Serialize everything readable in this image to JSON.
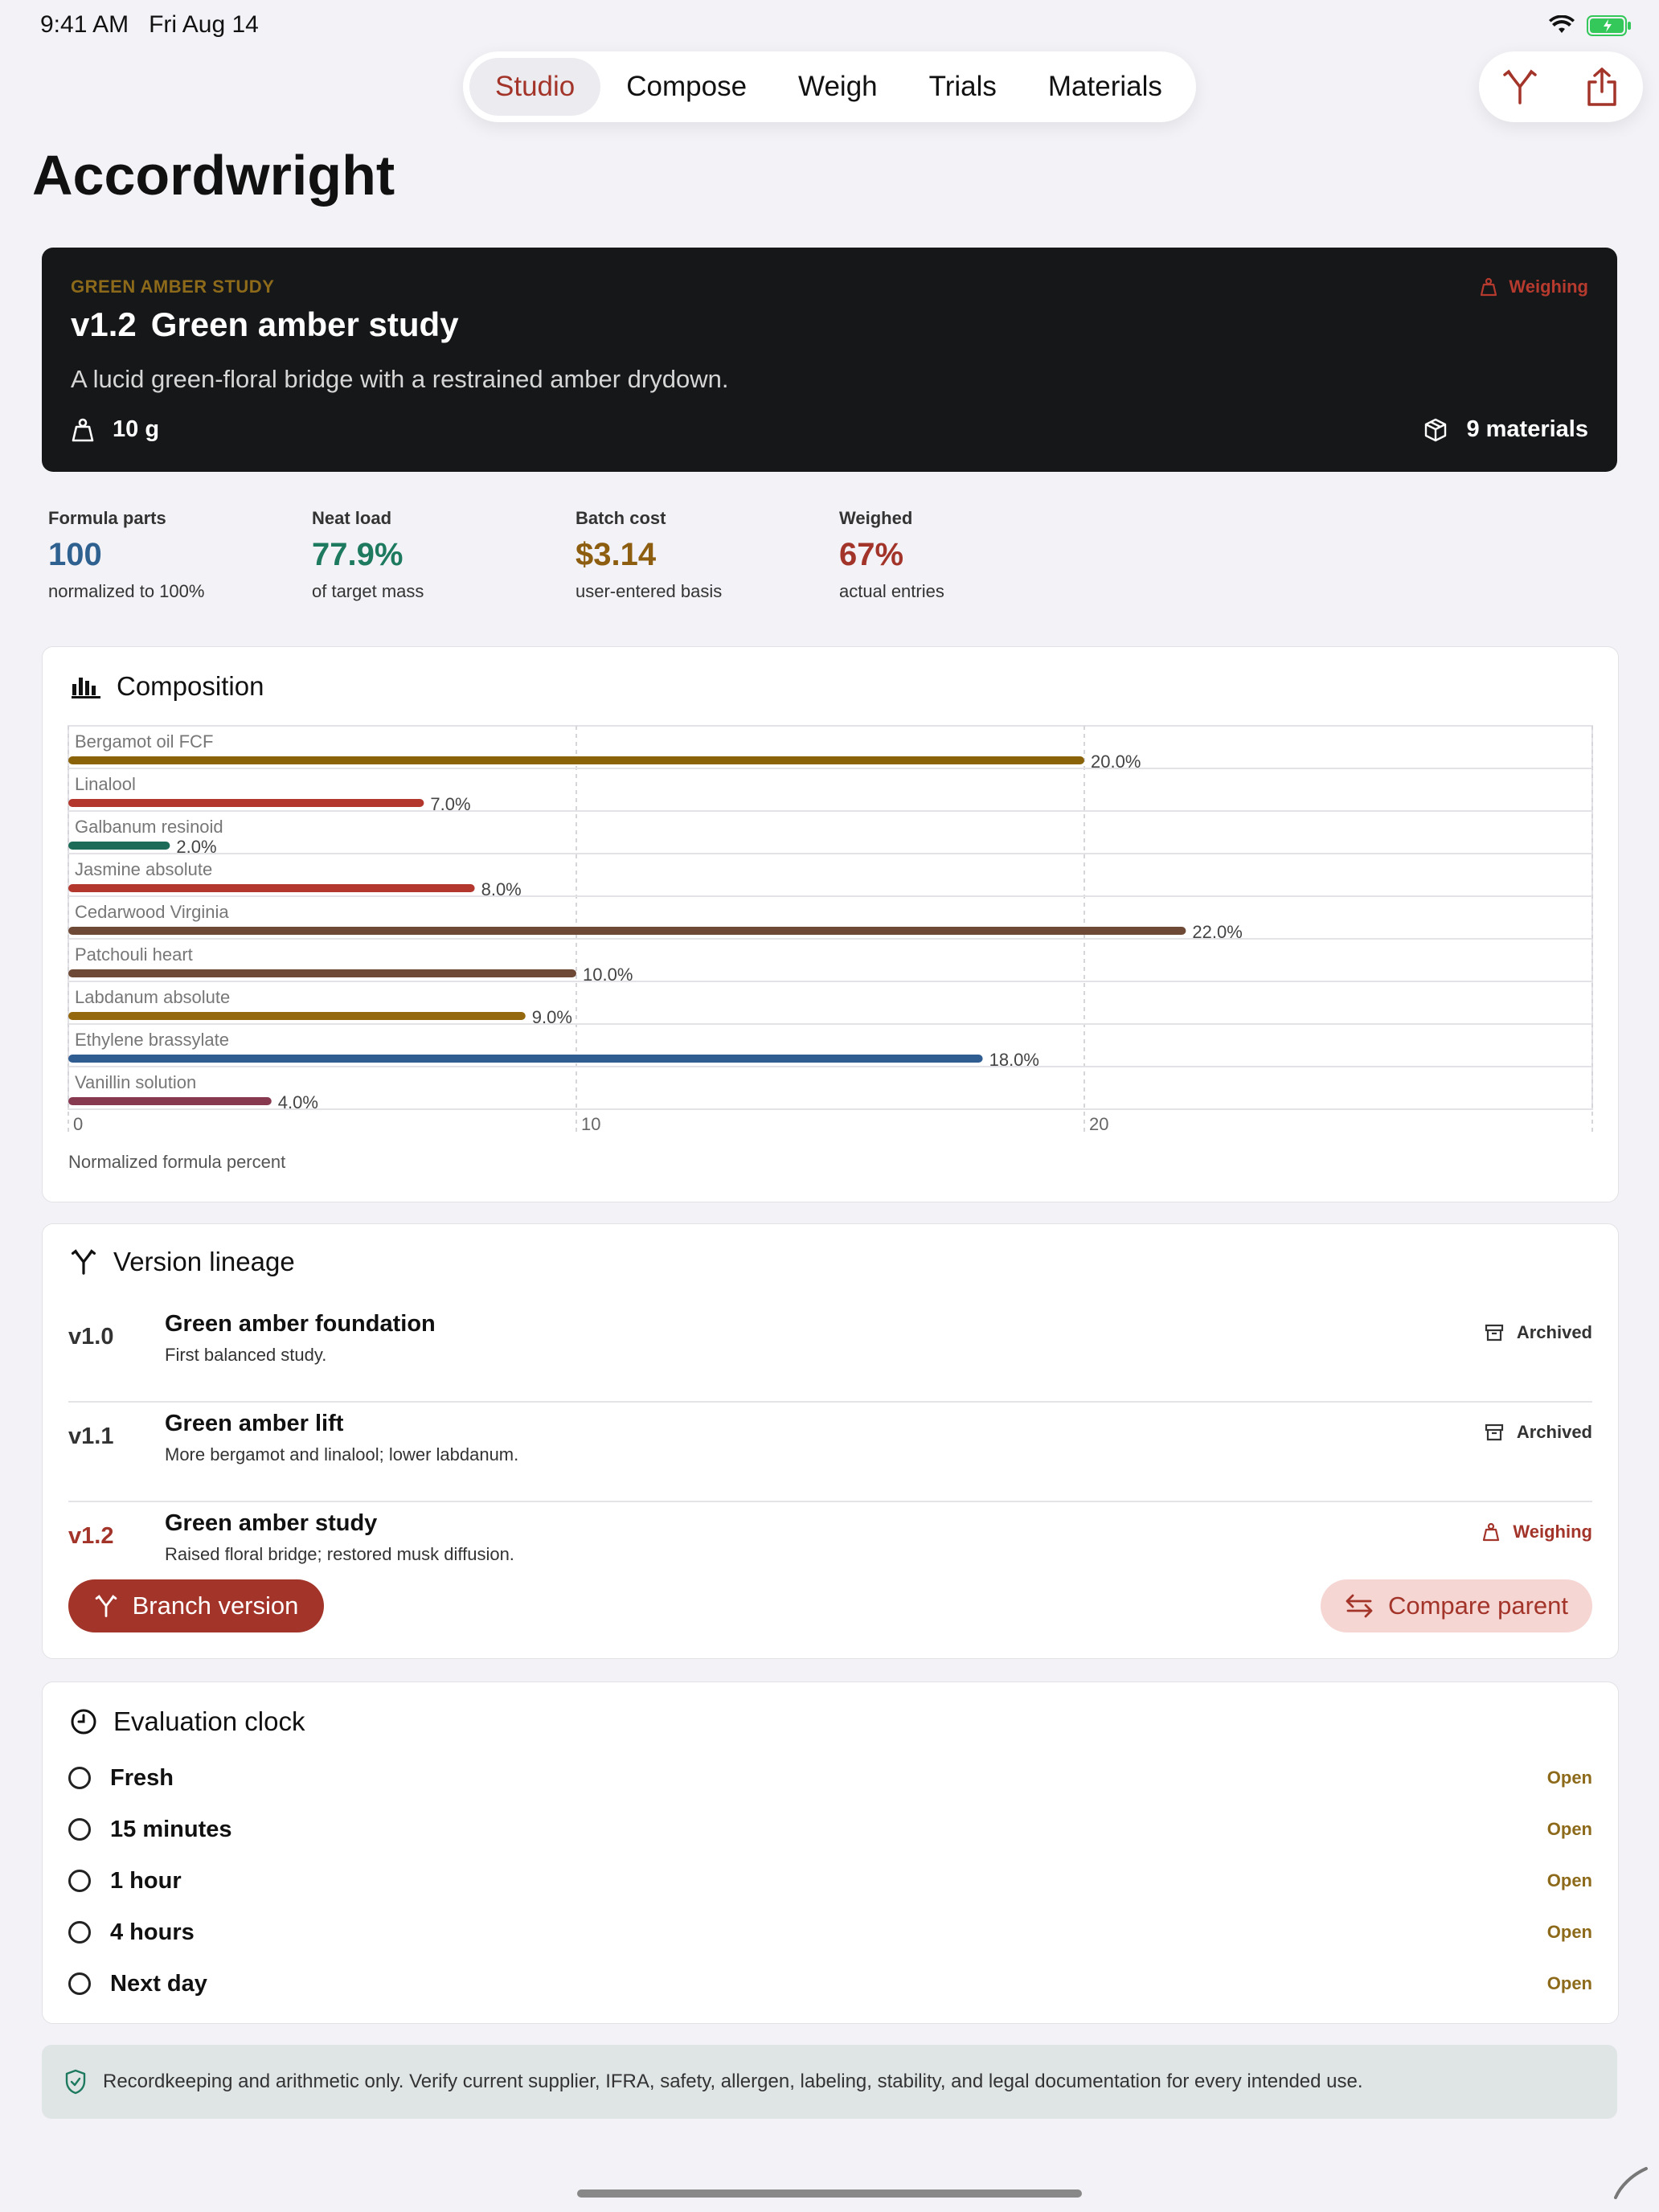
{
  "status_bar": {
    "time": "9:41 AM",
    "date": "Fri Aug 14"
  },
  "tabs": [
    {
      "label": "Studio",
      "active": true
    },
    {
      "label": "Compose",
      "active": false
    },
    {
      "label": "Weigh",
      "active": false
    },
    {
      "label": "Trials",
      "active": false
    },
    {
      "label": "Materials",
      "active": false
    }
  ],
  "actions": {
    "branch_icon": "branch-icon",
    "share_icon": "share-icon"
  },
  "app_title": "Accordwright",
  "hero": {
    "eyebrow": "GREEN AMBER STUDY",
    "status": "Weighing",
    "version": "v1.2",
    "title": "Green amber study",
    "description": "A lucid green-floral bridge with a restrained amber drydown.",
    "mass": "10 g",
    "materials": "9 materials"
  },
  "stats": [
    {
      "label": "Formula parts",
      "value": "100",
      "sub": "normalized to 100%",
      "color": "#2f6190"
    },
    {
      "label": "Neat load",
      "value": "77.9%",
      "sub": "of target mass",
      "color": "#1e7a5e"
    },
    {
      "label": "Batch cost",
      "value": "$3.14",
      "sub": "user-entered basis",
      "color": "#8d5e10"
    },
    {
      "label": "Weighed",
      "value": "67%",
      "sub": "actual entries",
      "color": "#a3342a"
    }
  ],
  "composition": {
    "title": "Composition",
    "caption": "Normalized formula percent"
  },
  "chart_data": {
    "type": "bar",
    "orientation": "horizontal",
    "categories": [
      "Bergamot oil FCF",
      "Linalool",
      "Galbanum resinoid",
      "Jasmine absolute",
      "Cedarwood Virginia",
      "Patchouli heart",
      "Labdanum absolute",
      "Ethylene brassylate",
      "Vanillin solution"
    ],
    "values": [
      20.0,
      7.0,
      2.0,
      8.0,
      22.0,
      10.0,
      9.0,
      18.0,
      4.0
    ],
    "value_labels": [
      "20.0%",
      "7.0%",
      "2.0%",
      "8.0%",
      "22.0%",
      "10.0%",
      "9.0%",
      "18.0%",
      "4.0%"
    ],
    "colors": [
      "#8a6308",
      "#b3372d",
      "#1b6b58",
      "#b3372d",
      "#6e4a36",
      "#6e4a36",
      "#93680f",
      "#2f5d92",
      "#86394f"
    ],
    "x_ticks": [
      "0",
      "10",
      "20"
    ],
    "xlim": [
      0,
      30
    ],
    "grid": true,
    "xlabel": "Normalized formula percent"
  },
  "lineage": {
    "title": "Version lineage",
    "rows": [
      {
        "version": "v1.0",
        "name": "Green amber foundation",
        "note": "First balanced study.",
        "badge": "Archived",
        "current": false
      },
      {
        "version": "v1.1",
        "name": "Green amber lift",
        "note": "More bergamot and linalool; lower labdanum.",
        "badge": "Archived",
        "current": false
      },
      {
        "version": "v1.2",
        "name": "Green amber study",
        "note": "Raised floral bridge; restored musk diffusion.",
        "badge": "Weighing",
        "current": true
      }
    ],
    "branch_label": "Branch version",
    "compare_label": "Compare parent"
  },
  "evaluation": {
    "title": "Evaluation clock",
    "rows": [
      {
        "label": "Fresh",
        "state": "Open"
      },
      {
        "label": "15 minutes",
        "state": "Open"
      },
      {
        "label": "1 hour",
        "state": "Open"
      },
      {
        "label": "4 hours",
        "state": "Open"
      },
      {
        "label": "Next day",
        "state": "Open"
      }
    ]
  },
  "notice": "Recordkeeping and arithmetic only. Verify current supplier, IFRA, safety, allergen, labeling, stability, and legal documentation for every intended use."
}
